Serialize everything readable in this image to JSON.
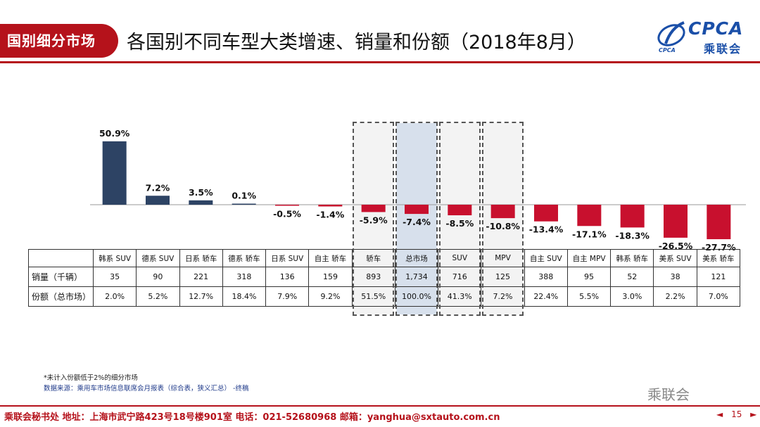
{
  "header": {
    "section_tag": "国别细分市场",
    "title": "各国别不同车型大类增速、销量和份额（2018年8月）",
    "logo_text": "CPCA",
    "logo_sub": "乘联会",
    "logo_mark": "CPCA"
  },
  "chart_data": {
    "type": "bar",
    "categories": [
      "韩系 SUV",
      "德系 SUV",
      "日系 轿车",
      "德系 轿车",
      "日系 SUV",
      "自主 轿车",
      "轿车",
      "总市场",
      "SUV",
      "MPV",
      "自主 SUV",
      "自主 MPV",
      "韩系 轿车",
      "美系 SUV",
      "美系 轿车"
    ],
    "values": [
      50.9,
      7.2,
      3.5,
      0.1,
      -0.5,
      -1.4,
      -5.9,
      -7.4,
      -8.5,
      -10.8,
      -13.4,
      -17.1,
      -18.3,
      -26.5,
      -27.7
    ],
    "value_labels": [
      "50.9%",
      "7.2%",
      "3.5%",
      "0.1%",
      "-0.5%",
      "-1.4%",
      "-5.9%",
      "-7.4%",
      "-8.5%",
      "-10.8%",
      "-13.4%",
      "-17.1%",
      "-18.3%",
      "-26.5%",
      "-27.7%"
    ],
    "ylim": [
      -30,
      60
    ],
    "positive_color": "#2d4364",
    "negative_color": "#c8102e",
    "highlighted": [
      "轿车",
      "总市场",
      "SUV",
      "MPV"
    ]
  },
  "table": {
    "rows": [
      {
        "label": "销量（千辆）",
        "values": [
          "35",
          "90",
          "221",
          "318",
          "136",
          "159",
          "893",
          "1,734",
          "716",
          "125",
          "388",
          "95",
          "52",
          "38",
          "121"
        ]
      },
      {
        "label": "份额（总市场）",
        "values": [
          "2.0%",
          "5.2%",
          "12.7%",
          "18.4%",
          "7.9%",
          "9.2%",
          "51.5%",
          "100.0%",
          "41.3%",
          "7.2%",
          "22.4%",
          "5.5%",
          "3.0%",
          "2.2%",
          "7.0%"
        ]
      }
    ]
  },
  "notes": {
    "note1": "*未计入份额低于2%的细分市场",
    "note2": "数据来源：乘用车市场信息联席会月报表（综合表，狭义汇总）  -终稿"
  },
  "watermark": "乘联会",
  "footer": {
    "text": "乘联会秘书处   地址：上海市武宁路423号18号楼901室  电话：021-52680968   邮箱：yanghua@sxtauto.com.cn",
    "prev": "◄",
    "page": "15",
    "next": "►"
  }
}
